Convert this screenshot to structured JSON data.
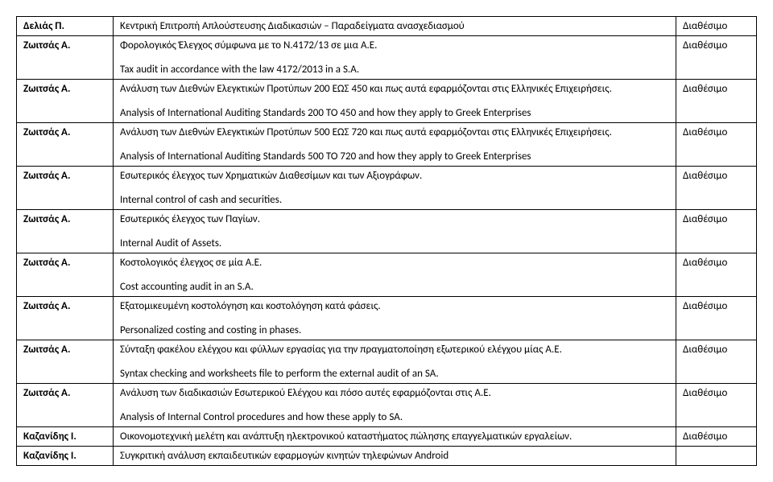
{
  "rows": [
    {
      "name": "Δελιάς Π.",
      "desc": "Κεντρική Επιτροπή Απλούστευσης Διαδικασιών – Παραδείγματα ανασχεδιασμού",
      "avail": "Διαθέσιμο"
    },
    {
      "name": "Ζωιτσάς Α.",
      "desc": "Φορολογικός Έλεγχος σύμφωνα με το Ν.4172/13 σε μια Α.Ε.\n\nTax audit in accordance with the law 4172/2013 in a S.A.",
      "avail": "Διαθέσιμο"
    },
    {
      "name": "Ζωιτσάς Α.",
      "desc": "Ανάλυση των Διεθνών Ελεγκτικών Προτύπων 200 ΕΩΣ 450 και πως αυτά εφαρμόζονται στις Ελληνικές Επιχειρήσεις.\n\nAnalysis of International Auditing Standards 200 TO 450 and how they apply to Greek Enterprises",
      "avail": "Διαθέσιμο"
    },
    {
      "name": "Ζωιτσάς Α.",
      "desc": "Ανάλυση των Διεθνών Ελεγκτικών Προτύπων 500 ΕΩΣ 720 και πως αυτά εφαρμόζονται στις Ελληνικές Επιχειρήσεις.\n\nAnalysis of International Auditing Standards 500 TO 720 and how they apply to Greek Enterprises",
      "avail": "Διαθέσιμο"
    },
    {
      "name": "Ζωιτσάς Α.",
      "desc": "Εσωτερικός έλεγχος των Χρηματικών Διαθεσίμων και των Αξιογράφων.\n\nInternal control of cash and securities.",
      "avail": "Διαθέσιμο"
    },
    {
      "name": "Ζωιτσάς Α.",
      "desc": "Εσωτερικός έλεγχος των Παγίων.\n\nInternal Audit of Assets.",
      "avail": "Διαθέσιμο"
    },
    {
      "name": "Ζωιτσάς Α.",
      "desc": "Κοστολογικός έλεγχος σε μία Α.Ε.\n\nCost accounting audit in an S.A.",
      "avail": "Διαθέσιμο"
    },
    {
      "name": "Ζωιτσάς Α.",
      "desc": "Εξατομικευμένη κοστολόγηση και κοστολόγηση κατά φάσεις.\n\nPersonalized costing and costing in phases.",
      "avail": "Διαθέσιμο"
    },
    {
      "name": "Ζωιτσάς Α.",
      "desc": "Σύνταξη φακέλου ελέγχου και φύλλων εργασίας για την πραγματοποίηση εξωτερικού ελέγχου μίας Α.Ε.\n\nSyntax checking and worksheets file to perform the external audit of an SA.",
      "avail": "Διαθέσιμο"
    },
    {
      "name": "Ζωιτσάς Α.",
      "desc": "Ανάλυση των διαδικασιών Εσωτερικού Ελέγχου και πόσο αυτές εφαρμόζονται στις Α.Ε.\n\nAnalysis of Internal Control procedures and how these apply to SA.",
      "avail": "Διαθέσιμο"
    },
    {
      "name": "Καζανίδης Ι.",
      "desc": "Οικονομοτεχνική μελέτη και ανάπτυξη ηλεκτρονικού καταστήματος πώλησης επαγγελματικών εργαλείων.",
      "avail": "Διαθέσιμο"
    },
    {
      "name": "Καζανίδης Ι.",
      "desc": "Συγκριτική ανάλυση εκπαιδευτικών εφαρμογών κινητών τηλεφώνων Android",
      "avail": ""
    }
  ]
}
